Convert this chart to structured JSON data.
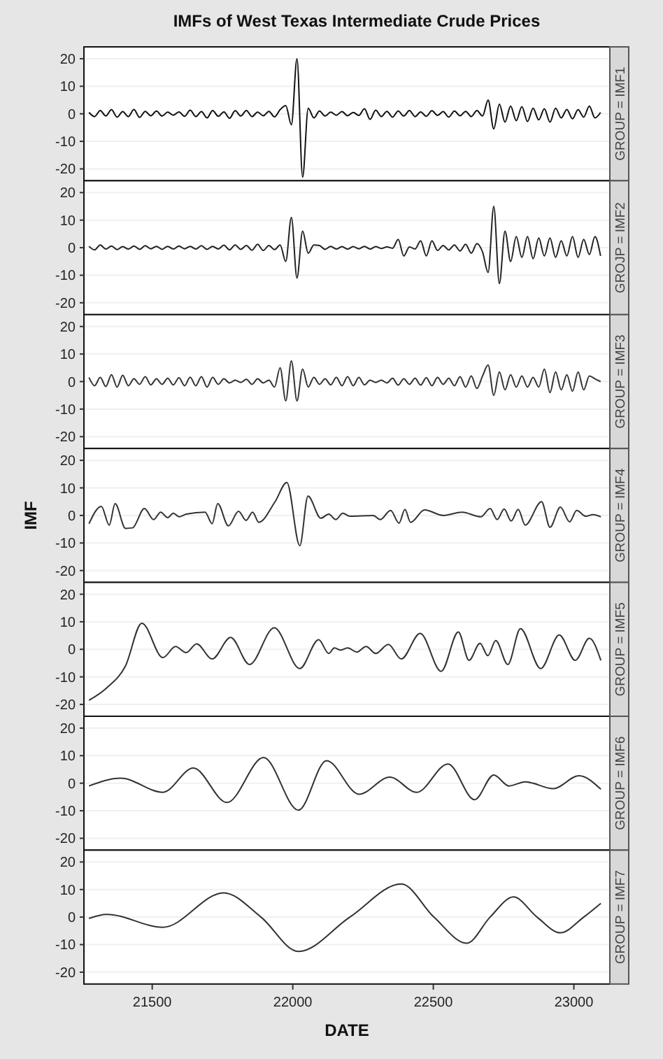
{
  "chart_data": [
    {
      "type": "line",
      "title": "IMFs of West Texas Intermediate Crude Prices",
      "subtitle": "GROUP = IMF1",
      "xlim": [
        21257,
        23128
      ],
      "ylim": [
        -24.3,
        24.3
      ],
      "yticks": [
        -20,
        -10,
        0,
        10,
        20
      ],
      "grid": "y",
      "tick_labels": "y",
      "x": [
        21275,
        21295,
        21315,
        21335,
        21355,
        21375,
        21395,
        21415,
        21435,
        21455,
        21475,
        21495,
        21515,
        21535,
        21555,
        21575,
        21595,
        21615,
        21635,
        21655,
        21675,
        21695,
        21715,
        21735,
        21755,
        21775,
        21795,
        21815,
        21835,
        21855,
        21875,
        21895,
        21915,
        21935,
        21955,
        21975,
        21995,
        22015,
        22035,
        22055,
        22075,
        22095,
        22115,
        22135,
        22155,
        22175,
        22195,
        22215,
        22235,
        22255,
        22275,
        22295,
        22315,
        22335,
        22355,
        22375,
        22395,
        22415,
        22435,
        22455,
        22475,
        22495,
        22515,
        22535,
        22555,
        22575,
        22595,
        22615,
        22635,
        22655,
        22675,
        22695,
        22715,
        22735,
        22755,
        22775,
        22795,
        22815,
        22835,
        22855,
        22875,
        22895,
        22915,
        22935,
        22955,
        22975,
        22995,
        23015,
        23035,
        23055,
        23075,
        23095
      ],
      "series": [
        {
          "color": "#111111",
          "values": [
            0.5,
            -1,
            1.2,
            -0.8,
            1.5,
            -1.2,
            0.8,
            -1,
            1.6,
            -1.3,
            0.9,
            -0.7,
            1,
            -0.8,
            0.6,
            -0.5,
            0.7,
            -0.9,
            1.3,
            -1,
            0.8,
            -1.5,
            1.2,
            -0.9,
            0.7,
            -1.6,
            1.1,
            -0.8,
            1.2,
            -1,
            0.6,
            -0.7,
            0.9,
            -1.1,
            1.5,
            3,
            -4,
            20,
            -23,
            2,
            -1.5,
            1,
            -0.8,
            0.6,
            -0.5,
            0.8,
            -0.7,
            0.5,
            -0.6,
            1.8,
            -2,
            1.3,
            -1,
            0.9,
            -1.2,
            1,
            -0.8,
            1.2,
            -1,
            0.7,
            -0.9,
            1.1,
            -0.6,
            0.8,
            -1.2,
            1,
            -0.7,
            0.9,
            -1,
            1.2,
            -0.8,
            5,
            -5.5,
            3.5,
            -3,
            2.8,
            -2.5,
            2.6,
            -2.8,
            2,
            -2.2,
            1.8,
            -3,
            2,
            -1.5,
            1.6,
            -1.8,
            1.5,
            -1.2,
            2.8,
            -1.5,
            0.5
          ]
        }
      ]
    },
    {
      "type": "line",
      "subtitle": "GROJP = IMF2",
      "xlim": [
        21257,
        23128
      ],
      "ylim": [
        -24.3,
        24.3
      ],
      "yticks": [
        -20,
        -10,
        0,
        10,
        20
      ],
      "grid": "y",
      "tick_labels": "y",
      "x": [
        21275,
        21295,
        21315,
        21335,
        21355,
        21375,
        21395,
        21415,
        21435,
        21455,
        21475,
        21495,
        21515,
        21535,
        21555,
        21575,
        21595,
        21615,
        21635,
        21655,
        21675,
        21695,
        21715,
        21735,
        21755,
        21775,
        21795,
        21815,
        21835,
        21855,
        21875,
        21895,
        21915,
        21935,
        21955,
        21975,
        21995,
        22015,
        22035,
        22055,
        22075,
        22095,
        22115,
        22135,
        22155,
        22175,
        22195,
        22215,
        22235,
        22255,
        22275,
        22295,
        22315,
        22335,
        22355,
        22375,
        22395,
        22415,
        22435,
        22455,
        22475,
        22495,
        22515,
        22535,
        22555,
        22575,
        22595,
        22615,
        22635,
        22655,
        22675,
        22695,
        22715,
        22735,
        22755,
        22775,
        22795,
        22815,
        22835,
        22855,
        22875,
        22895,
        22915,
        22935,
        22955,
        22975,
        22995,
        23015,
        23035,
        23055,
        23075,
        23095
      ],
      "series": [
        {
          "color": "#222222",
          "values": [
            0.5,
            -0.8,
            1,
            -0.5,
            0.6,
            -0.7,
            0.4,
            -0.5,
            0.6,
            -0.6,
            0.7,
            -0.4,
            0.5,
            -0.6,
            0.5,
            -0.5,
            0.6,
            -0.4,
            0.5,
            -0.5,
            0.7,
            -0.6,
            0.5,
            -0.5,
            0.9,
            -0.8,
            1,
            -0.6,
            0.8,
            -0.9,
            1.2,
            -1,
            0.8,
            -0.7,
            1,
            -5,
            11,
            -11,
            6,
            -2,
            1,
            0.8,
            -0.6,
            0.5,
            -0.5,
            0.4,
            -0.5,
            0.4,
            -0.4,
            0.5,
            -0.5,
            0.4,
            -0.3,
            0.3,
            -0.2,
            3,
            -3,
            0.3,
            -0.5,
            2.5,
            -3,
            2.5,
            -1,
            0.8,
            -0.8,
            1,
            -1.2,
            1.2,
            -2,
            1.5,
            -1.5,
            -9,
            15,
            -13,
            6,
            -5,
            4,
            -3.5,
            4,
            -4,
            3.5,
            -3,
            3.5,
            -3.5,
            2.5,
            -3,
            4,
            -3.5,
            3,
            -2.5,
            4,
            -3
          ]
        }
      ]
    },
    {
      "type": "line",
      "subtitle": "GROUP = IMF3",
      "xlim": [
        21257,
        23128
      ],
      "ylim": [
        -24.3,
        24.3
      ],
      "yticks": [
        -20,
        -10,
        0,
        10,
        20
      ],
      "grid": "y",
      "tick_labels": "y",
      "x": [
        21275,
        21295,
        21315,
        21335,
        21355,
        21375,
        21395,
        21415,
        21435,
        21455,
        21475,
        21495,
        21515,
        21535,
        21555,
        21575,
        21595,
        21615,
        21635,
        21655,
        21675,
        21695,
        21715,
        21735,
        21755,
        21775,
        21795,
        21815,
        21835,
        21855,
        21875,
        21895,
        21915,
        21935,
        21955,
        21975,
        21995,
        22015,
        22035,
        22055,
        22075,
        22095,
        22115,
        22135,
        22155,
        22175,
        22195,
        22215,
        22235,
        22255,
        22275,
        22295,
        22315,
        22335,
        22355,
        22375,
        22395,
        22415,
        22435,
        22455,
        22475,
        22495,
        22515,
        22535,
        22555,
        22575,
        22595,
        22615,
        22635,
        22655,
        22675,
        22695,
        22715,
        22735,
        22755,
        22775,
        22795,
        22815,
        22835,
        22855,
        22875,
        22895,
        22915,
        22935,
        22955,
        22975,
        22995,
        23015,
        23035,
        23055,
        23075,
        23095
      ],
      "series": [
        {
          "color": "#333333",
          "values": [
            1.5,
            -1.5,
            1.5,
            -1.8,
            2.5,
            -2,
            2.3,
            -1.5,
            1,
            -1,
            1.8,
            -1.2,
            1,
            -1,
            1.2,
            -1.2,
            1.4,
            -1.5,
            1.6,
            -1.5,
            1.8,
            -2,
            1.5,
            -1,
            1,
            -0.5,
            0.5,
            -0.3,
            0.8,
            -1,
            1,
            -0.5,
            0.5,
            -2,
            5,
            -7,
            7.5,
            -7,
            4.5,
            -2,
            1.5,
            -1,
            1,
            -1.2,
            1.5,
            -1.5,
            1.8,
            -1.5,
            1.5,
            -1.2,
            0.5,
            -0.3,
            0.5,
            -0.5,
            1.2,
            -1.3,
            1,
            -1,
            1.2,
            -1.3,
            1.4,
            -1.5,
            1.5,
            -1,
            1.2,
            -1.5,
            1.8,
            -2,
            2,
            -2.5,
            2,
            6,
            -5,
            3.5,
            -3,
            2.5,
            -2,
            2,
            -2,
            1.5,
            -2,
            4.5,
            -4,
            3.5,
            -3,
            2.5,
            -3.5,
            3.5,
            -3,
            2,
            1,
            0
          ]
        }
      ]
    },
    {
      "type": "line",
      "subtitle": "GROUP = IMF4",
      "ylabel": "IMF",
      "xlim": [
        21257,
        23128
      ],
      "ylim": [
        -24.3,
        24.3
      ],
      "yticks": [
        -20,
        -10,
        0,
        10,
        20
      ],
      "grid": "y",
      "tick_labels": "y",
      "x": [
        21275,
        21319,
        21347,
        21368,
        21405,
        21430,
        21472,
        21505,
        21530,
        21555,
        21575,
        21596,
        21621,
        21688,
        21713,
        21733,
        21771,
        21807,
        21834,
        21857,
        21879,
        21937,
        21979,
        22025,
        22054,
        22100,
        22128,
        22153,
        22178,
        22203,
        22286,
        22311,
        22348,
        22378,
        22399,
        22419,
        22469,
        22536,
        22602,
        22669,
        22702,
        22727,
        22752,
        22777,
        22802,
        22827,
        22885,
        22915,
        22952,
        22985,
        23010,
        23043,
        23068,
        23096
      ],
      "series": [
        {
          "color": "#333333",
          "values": [
            -3,
            3.3,
            -3.5,
            4.3,
            -4.7,
            -4.5,
            2.5,
            -1.5,
            1.2,
            -0.8,
            0.8,
            -0.5,
            0.5,
            1.2,
            -3,
            4.3,
            -3.8,
            1.5,
            -1.8,
            1.2,
            -2.5,
            5,
            12,
            -11,
            7,
            -1,
            0.5,
            -1.5,
            0.8,
            -0.3,
            0,
            -1.5,
            1.8,
            -2.8,
            2.2,
            -2.5,
            2,
            0,
            1.2,
            -0.5,
            2.5,
            -1.5,
            2.3,
            -2,
            2.2,
            -3.5,
            5,
            -4.3,
            3,
            -2.3,
            1.8,
            -0.3,
            0.3,
            -0.5
          ]
        }
      ]
    },
    {
      "type": "line",
      "subtitle": "GROUP = IMF5",
      "xlim": [
        21257,
        23128
      ],
      "ylim": [
        -24.3,
        24.3
      ],
      "yticks": [
        -20,
        -10,
        0,
        10,
        20
      ],
      "grid": "y",
      "tick_labels": "y",
      "x": [
        21275,
        21338,
        21405,
        21463,
        21538,
        21583,
        21621,
        21658,
        21713,
        21779,
        21846,
        21934,
        22025,
        22092,
        22128,
        22148,
        22170,
        22195,
        22228,
        22261,
        22295,
        22340,
        22386,
        22453,
        22528,
        22589,
        22627,
        22666,
        22694,
        22722,
        22765,
        22810,
        22882,
        22948,
        23005,
        23055,
        23096
      ],
      "series": [
        {
          "color": "#333333",
          "values": [
            -18.5,
            -14,
            -6,
            9.5,
            -3,
            1,
            -1.2,
            2,
            -3.5,
            4.3,
            -5.5,
            7.8,
            -7,
            3.5,
            -1.5,
            0.5,
            -0.3,
            0.5,
            -1,
            1,
            -1.5,
            1.8,
            -3.5,
            5.8,
            -8,
            6.3,
            -4,
            2.2,
            -2.3,
            3.2,
            -5.5,
            7.5,
            -7,
            5.2,
            -4,
            4,
            -4
          ]
        }
      ]
    },
    {
      "type": "line",
      "subtitle": "GROUP = IMF6",
      "xlim": [
        21257,
        23128
      ],
      "ylim": [
        -24.3,
        24.3
      ],
      "yticks": [
        -20,
        -10,
        0,
        10,
        20
      ],
      "grid": "y",
      "tick_labels": "y",
      "x": [
        21275,
        21388,
        21538,
        21646,
        21766,
        21896,
        22020,
        22120,
        22236,
        22345,
        22441,
        22552,
        22647,
        22715,
        22769,
        22827,
        22927,
        23018,
        23096
      ],
      "series": [
        {
          "color": "#333333",
          "values": [
            -1,
            1.8,
            -3.3,
            5.5,
            -7,
            9.3,
            -9.8,
            8.2,
            -4,
            2.2,
            -3.3,
            7,
            -6,
            3,
            -1,
            0.5,
            -2,
            2.7,
            -2.2
          ]
        }
      ]
    },
    {
      "type": "line",
      "subtitle": "GROUP = IMF7",
      "xlabel": "DATE",
      "xlim": [
        21257,
        23128
      ],
      "xticks": [
        21500,
        22000,
        22500,
        23000
      ],
      "ylim": [
        -24.3,
        24.3
      ],
      "yticks": [
        -20,
        -10,
        0,
        10,
        20
      ],
      "grid": "y",
      "x": [
        21275,
        21338,
        21538,
        21754,
        21887,
        22020,
        22203,
        22386,
        22502,
        22619,
        22702,
        22785,
        22869,
        22952,
        23035,
        23096
      ],
      "series": [
        {
          "color": "#333333",
          "values": [
            -0.5,
            1,
            -3.7,
            8.8,
            0,
            -12.5,
            0,
            12,
            0,
            -9.5,
            0,
            7.3,
            0,
            -5.7,
            0,
            5
          ]
        }
      ]
    }
  ]
}
